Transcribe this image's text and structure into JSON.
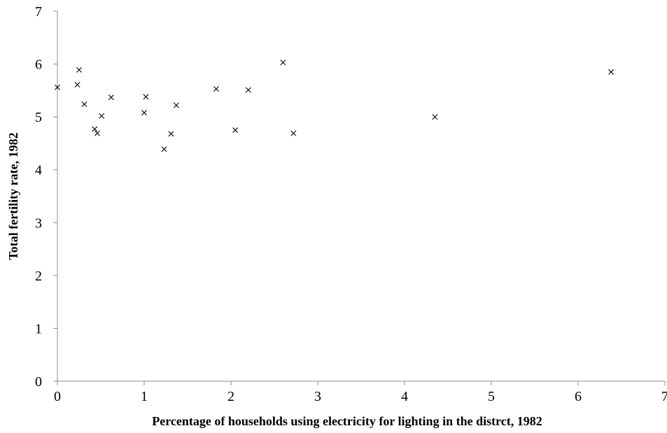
{
  "chart_data": {
    "type": "scatter",
    "title": "",
    "xlabel": "Percentage of households using electricity for lighting in the distrct, 1982",
    "ylabel": "Total fertility rate, 1982",
    "xlim": [
      0,
      7
    ],
    "ylim": [
      0,
      7
    ],
    "xticks": [
      "0",
      "1",
      "2",
      "3",
      "4",
      "5",
      "6",
      "7"
    ],
    "yticks": [
      "0",
      "1",
      "2",
      "3",
      "4",
      "5",
      "6",
      "7"
    ],
    "grid": false,
    "legend": "none",
    "marker": "x",
    "marker_color": "#000000",
    "axis_color": "#8c8c8c",
    "series": [
      {
        "points": [
          [
            0.0,
            5.56
          ],
          [
            0.23,
            5.61
          ],
          [
            0.25,
            5.89
          ],
          [
            0.31,
            5.24
          ],
          [
            0.43,
            4.77
          ],
          [
            0.46,
            4.69
          ],
          [
            0.51,
            5.02
          ],
          [
            0.62,
            5.37
          ],
          [
            1.0,
            5.08
          ],
          [
            1.02,
            5.38
          ],
          [
            1.23,
            4.39
          ],
          [
            1.31,
            4.68
          ],
          [
            1.37,
            5.22
          ],
          [
            1.83,
            5.53
          ],
          [
            2.05,
            4.75
          ],
          [
            2.2,
            5.51
          ],
          [
            2.6,
            6.03
          ],
          [
            2.72,
            4.69
          ],
          [
            4.35,
            5.0
          ],
          [
            6.38,
            5.85
          ]
        ]
      }
    ]
  }
}
